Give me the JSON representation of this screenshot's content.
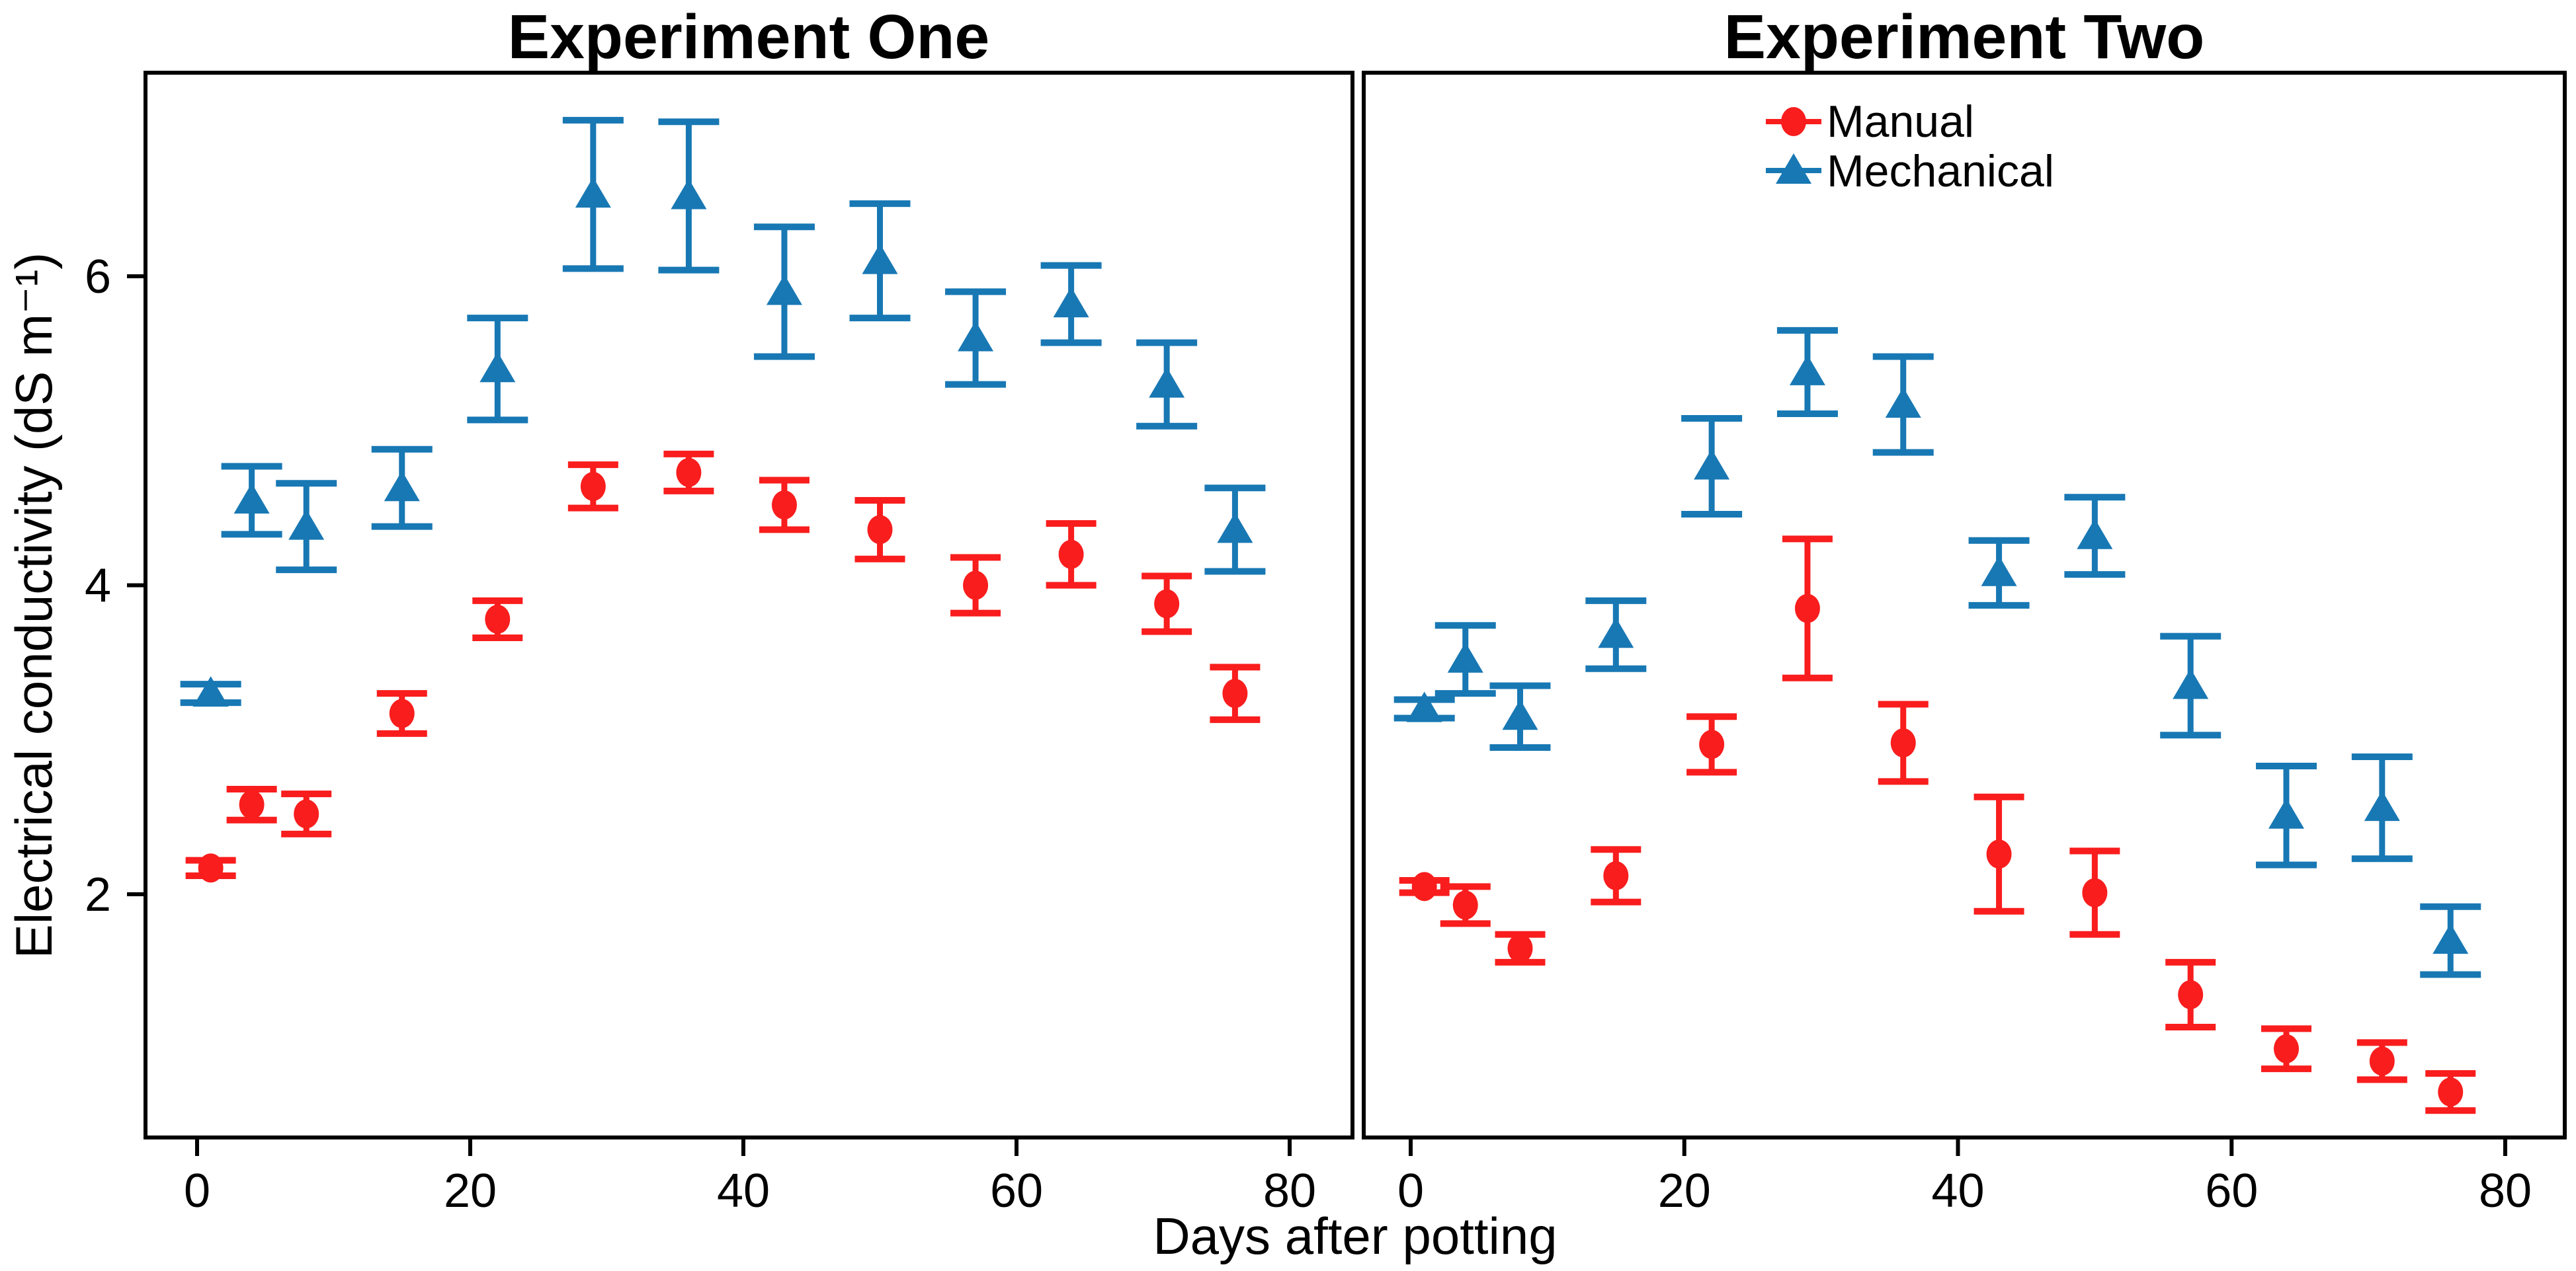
{
  "chart_data": {
    "type": "scatter",
    "title": "",
    "xlabel": "Days after potting",
    "ylabel": "Electrical conductivity (dS m⁻¹)",
    "x_ticks": [
      0,
      20,
      40,
      60,
      80
    ],
    "y_ticks": [
      2,
      4,
      6
    ],
    "xlim": [
      -4,
      84
    ],
    "ylim": [
      0.4,
      7.3
    ],
    "grid": false,
    "legend": {
      "position": "inside-top-left-of-right-panel",
      "entries": [
        {
          "label": "Manual",
          "marker": "circle",
          "color": "#F91D1D"
        },
        {
          "label": "Mechanical",
          "marker": "triangle",
          "color": "#1878B4"
        }
      ]
    },
    "point_format": "[day, mean, standard_error]",
    "panels": [
      {
        "title": "Experiment One",
        "series": [
          {
            "name": "Manual",
            "marker": "circle",
            "color": "#F91D1D",
            "points": [
              [
                1,
                2.17,
                0.05
              ],
              [
                4,
                2.58,
                0.1
              ],
              [
                8,
                2.52,
                0.13
              ],
              [
                15,
                3.17,
                0.13
              ],
              [
                22,
                3.78,
                0.12
              ],
              [
                29,
                4.64,
                0.14
              ],
              [
                36,
                4.73,
                0.12
              ],
              [
                43,
                4.52,
                0.16
              ],
              [
                50,
                4.36,
                0.19
              ],
              [
                57,
                4.0,
                0.18
              ],
              [
                64,
                4.2,
                0.2
              ],
              [
                71,
                3.88,
                0.18
              ],
              [
                76,
                3.3,
                0.17
              ]
            ]
          },
          {
            "name": "Mechanical",
            "marker": "triangle",
            "color": "#1878B4",
            "points": [
              [
                1,
                3.3,
                0.06
              ],
              [
                4,
                4.55,
                0.22
              ],
              [
                8,
                4.38,
                0.28
              ],
              [
                15,
                4.63,
                0.25
              ],
              [
                22,
                5.4,
                0.33
              ],
              [
                29,
                6.53,
                0.48
              ],
              [
                36,
                6.52,
                0.48
              ],
              [
                43,
                5.9,
                0.42
              ],
              [
                50,
                6.1,
                0.37
              ],
              [
                57,
                5.6,
                0.3
              ],
              [
                64,
                5.82,
                0.25
              ],
              [
                71,
                5.3,
                0.27
              ],
              [
                76,
                4.36,
                0.27
              ]
            ]
          }
        ]
      },
      {
        "title": "Experiment Two",
        "series": [
          {
            "name": "Manual",
            "marker": "circle",
            "color": "#F91D1D",
            "points": [
              [
                1,
                2.05,
                0.04
              ],
              [
                4,
                1.93,
                0.12
              ],
              [
                8,
                1.65,
                0.09
              ],
              [
                15,
                2.12,
                0.17
              ],
              [
                22,
                2.97,
                0.18
              ],
              [
                29,
                3.85,
                0.45
              ],
              [
                36,
                2.98,
                0.25
              ],
              [
                43,
                2.26,
                0.37
              ],
              [
                50,
                2.01,
                0.27
              ],
              [
                57,
                1.35,
                0.21
              ],
              [
                64,
                1.0,
                0.13
              ],
              [
                71,
                0.92,
                0.12
              ],
              [
                76,
                0.72,
                0.12
              ]
            ]
          },
          {
            "name": "Mechanical",
            "marker": "triangle",
            "color": "#1878B4",
            "points": [
              [
                1,
                3.2,
                0.06
              ],
              [
                4,
                3.52,
                0.22
              ],
              [
                8,
                3.15,
                0.2
              ],
              [
                15,
                3.68,
                0.22
              ],
              [
                22,
                4.77,
                0.31
              ],
              [
                29,
                5.38,
                0.27
              ],
              [
                36,
                5.17,
                0.31
              ],
              [
                43,
                4.08,
                0.21
              ],
              [
                50,
                4.32,
                0.25
              ],
              [
                57,
                3.35,
                0.32
              ],
              [
                64,
                2.51,
                0.32
              ],
              [
                71,
                2.56,
                0.33
              ],
              [
                76,
                1.7,
                0.22
              ]
            ]
          }
        ]
      }
    ],
    "colors": {
      "manual": "#F91D1D",
      "mechanical": "#1878B4",
      "axis": "#000000",
      "background": "#FFFFFF"
    }
  }
}
